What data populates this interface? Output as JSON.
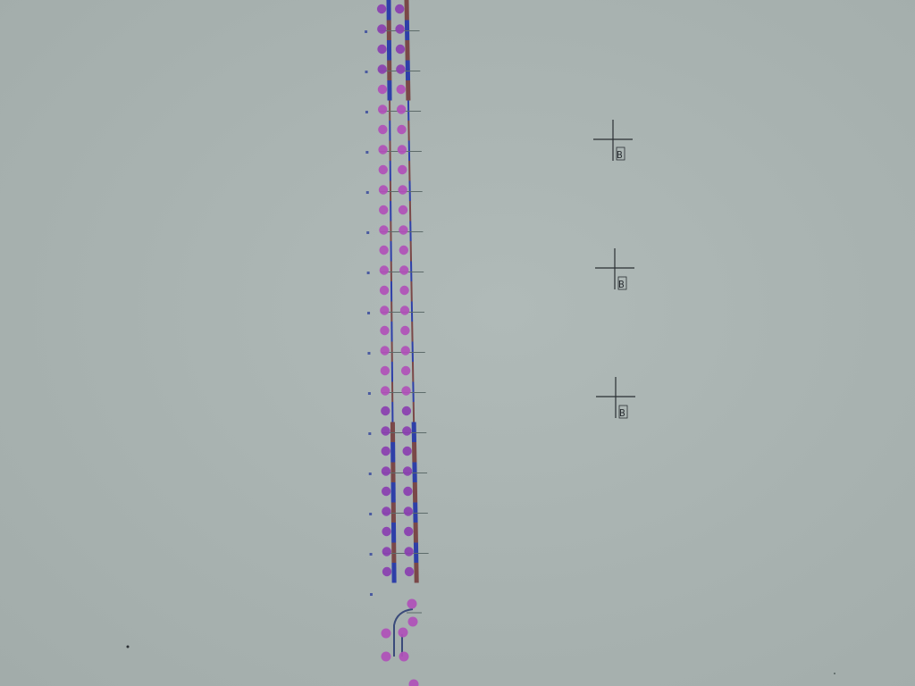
{
  "scene": {
    "description_kind": "photo-of-printout",
    "background_color": "#a9b3b1",
    "colors": {
      "dot_magenta": "#b050b8",
      "dot_purple": "#8a3fb0",
      "bar_blue": "#2e3fa8",
      "bar_brown": "#7a4848",
      "strand_line": "#3a4a7a",
      "cross_line": "#5d6b6a",
      "marker_ink": "#2a2f33"
    }
  },
  "markers": [
    {
      "label": "B",
      "kind": "crosshair"
    },
    {
      "label": "B",
      "kind": "crosshair"
    },
    {
      "label": "B",
      "kind": "crosshair"
    }
  ]
}
